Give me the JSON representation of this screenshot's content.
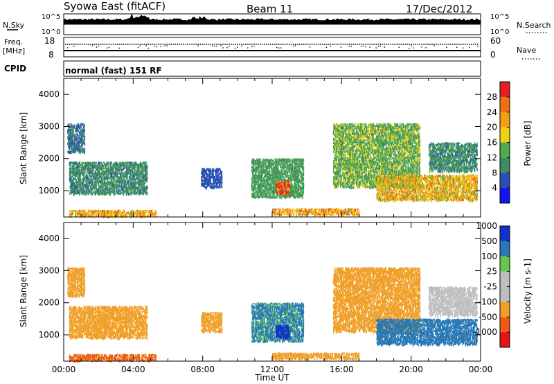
{
  "header": {
    "title": "Syowa East (fitACF)",
    "beam": "Beam 11",
    "date": "17/Dec/2012"
  },
  "noise_panel": {
    "left_label": "N.Sky",
    "left_ticks": [
      "10^5",
      "10^0"
    ],
    "right_label": "N.Search",
    "right_ticks": [
      "10^5",
      "10^0"
    ]
  },
  "freq_panel": {
    "left_label_1": "Freq.",
    "left_label_2": "[MHz]",
    "left_ticks": [
      "18",
      "8"
    ],
    "right_label": "Nave",
    "right_ticks": [
      "60",
      "0"
    ]
  },
  "cpid_panel": {
    "label": "CPID",
    "text": "normal (fast) 151 RF"
  },
  "colors": {
    "power_scale": [
      "#1414f0",
      "#2850b4",
      "#3c8c64",
      "#50aa50",
      "#f0d214",
      "#f0a014",
      "#f06e14",
      "#e61e1e"
    ],
    "velocity_scale": [
      "#e61414",
      "#f05a14",
      "#f0a028",
      "#bebebe",
      "#bebebe",
      "#64c850",
      "#2878b4",
      "#1432c8"
    ]
  },
  "chart_data": [
    {
      "type": "heatmap",
      "panel": "power",
      "ylabel": "Slant Range [km]",
      "yticks": [
        "1000",
        "2000",
        "3000",
        "4000"
      ],
      "ylim": [
        180,
        4500
      ],
      "xlabel": "Time UT",
      "xticks": [
        "00:00",
        "04:00",
        "08:00",
        "12:00",
        "16:00",
        "20:00",
        "00:00"
      ],
      "xlim": [
        0,
        24
      ],
      "colorbar": {
        "label": "Power [dB]",
        "ticks": [
          "4",
          "8",
          "12",
          "16",
          "20",
          "24",
          "28"
        ],
        "range": [
          0,
          32
        ]
      },
      "echo_regions": [
        {
          "t": [
            0.3,
            5.3
          ],
          "r": [
            200,
            400
          ],
          "value": 22
        },
        {
          "t": [
            0.3,
            4.8
          ],
          "r": [
            900,
            1900
          ],
          "value": 10
        },
        {
          "t": [
            0.2,
            1.2
          ],
          "r": [
            2200,
            3100
          ],
          "value": 8
        },
        {
          "t": [
            7.9,
            9.1
          ],
          "r": [
            1100,
            1700
          ],
          "value": 6
        },
        {
          "t": [
            10.8,
            13.8
          ],
          "r": [
            800,
            2000
          ],
          "value": 12
        },
        {
          "t": [
            12.2,
            13.0
          ],
          "r": [
            900,
            1300
          ],
          "value": 28
        },
        {
          "t": [
            12.0,
            17.0
          ],
          "r": [
            250,
            450
          ],
          "value": 22
        },
        {
          "t": [
            15.5,
            20.5
          ],
          "r": [
            1100,
            3100
          ],
          "value": 14
        },
        {
          "t": [
            18.0,
            23.8
          ],
          "r": [
            700,
            1500
          ],
          "value": 20
        },
        {
          "t": [
            21.0,
            23.8
          ],
          "r": [
            1600,
            2500
          ],
          "value": 10
        }
      ]
    },
    {
      "type": "heatmap",
      "panel": "velocity",
      "ylabel": "Slant Range [km]",
      "yticks": [
        "1000",
        "2000",
        "3000",
        "4000"
      ],
      "ylim": [
        180,
        4500
      ],
      "xlabel": "Time UT",
      "xticks": [
        "00:00",
        "04:00",
        "08:00",
        "12:00",
        "16:00",
        "20:00",
        "00:00"
      ],
      "xlim": [
        0,
        24
      ],
      "colorbar": {
        "label": "Velocity [m s-1]",
        "ticks": [
          "-1000",
          "-500",
          "-100",
          "-25",
          "25",
          "100",
          "500",
          "1000"
        ]
      },
      "echo_regions": [
        {
          "t": [
            0.3,
            5.3
          ],
          "r": [
            200,
            400
          ],
          "value": -600
        },
        {
          "t": [
            0.3,
            4.8
          ],
          "r": [
            900,
            1900
          ],
          "value": -250
        },
        {
          "t": [
            0.2,
            1.2
          ],
          "r": [
            2200,
            3100
          ],
          "value": -200
        },
        {
          "t": [
            7.9,
            9.1
          ],
          "r": [
            1100,
            1700
          ],
          "value": -300
        },
        {
          "t": [
            10.8,
            13.8
          ],
          "r": [
            800,
            2000
          ],
          "value": 120
        },
        {
          "t": [
            12.2,
            13.0
          ],
          "r": [
            900,
            1300
          ],
          "value": 800
        },
        {
          "t": [
            12.0,
            17.0
          ],
          "r": [
            250,
            450
          ],
          "value": -300
        },
        {
          "t": [
            15.5,
            20.5
          ],
          "r": [
            1100,
            3100
          ],
          "value": -150
        },
        {
          "t": [
            18.0,
            23.8
          ],
          "r": [
            700,
            1500
          ],
          "value": 200
        },
        {
          "t": [
            21.0,
            23.8
          ],
          "r": [
            1600,
            2500
          ],
          "value": 0
        }
      ]
    }
  ]
}
